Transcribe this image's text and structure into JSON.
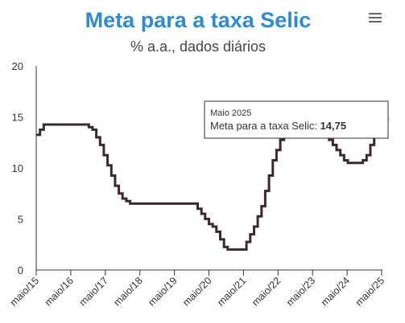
{
  "header": {
    "title": "Meta para a taxa Selic",
    "subtitle": "% a.a., dados diários",
    "menu_icon": "hamburger-menu-icon"
  },
  "tooltip": {
    "date": "Maio 2025",
    "label": "Meta para a taxa Selic: ",
    "value": "14,75"
  },
  "chart_data": {
    "type": "line",
    "title": "Meta para a taxa Selic",
    "subtitle": "% a.a., dados diários",
    "xlabel": "",
    "ylabel": "",
    "xlim": [
      2015.0,
      2025.4
    ],
    "ylim": [
      0,
      20
    ],
    "yticks": [
      0,
      5,
      10,
      15,
      20
    ],
    "xticks": [
      {
        "x": 2015,
        "label": "maio/15"
      },
      {
        "x": 2016,
        "label": "maio/16"
      },
      {
        "x": 2017,
        "label": "maio/17"
      },
      {
        "x": 2018,
        "label": "maio/18"
      },
      {
        "x": 2019,
        "label": "maio/19"
      },
      {
        "x": 2020,
        "label": "maio/20"
      },
      {
        "x": 2021,
        "label": "maio/21"
      },
      {
        "x": 2022,
        "label": "maio/22"
      },
      {
        "x": 2023,
        "label": "maio/23"
      },
      {
        "x": 2024,
        "label": "maio/24"
      },
      {
        "x": 2025,
        "label": "maio/25"
      }
    ],
    "grid": false,
    "line_color": "#3a2a2e",
    "step": true,
    "series": [
      {
        "points": [
          [
            2015.0,
            13.25
          ],
          [
            2015.1,
            13.75
          ],
          [
            2015.2,
            14.25
          ],
          [
            2016.4,
            14.0
          ],
          [
            2016.5,
            13.75
          ],
          [
            2016.6,
            13.0
          ],
          [
            2016.7,
            12.25
          ],
          [
            2016.8,
            11.25
          ],
          [
            2016.9,
            10.25
          ],
          [
            2017.0,
            9.25
          ],
          [
            2017.1,
            8.25
          ],
          [
            2017.2,
            7.5
          ],
          [
            2017.3,
            7.0
          ],
          [
            2017.4,
            6.75
          ],
          [
            2017.5,
            6.5
          ],
          [
            2019.3,
            6.0
          ],
          [
            2019.4,
            5.5
          ],
          [
            2019.5,
            5.0
          ],
          [
            2019.6,
            4.5
          ],
          [
            2019.7,
            4.25
          ],
          [
            2019.8,
            3.75
          ],
          [
            2019.9,
            3.0
          ],
          [
            2020.0,
            2.25
          ],
          [
            2020.1,
            2.0
          ],
          [
            2020.6,
            2.75
          ],
          [
            2020.7,
            3.5
          ],
          [
            2020.8,
            4.25
          ],
          [
            2020.9,
            5.25
          ],
          [
            2021.0,
            6.25
          ],
          [
            2021.1,
            7.75
          ],
          [
            2021.2,
            9.25
          ],
          [
            2021.3,
            10.75
          ],
          [
            2021.4,
            11.75
          ],
          [
            2021.5,
            12.75
          ],
          [
            2021.6,
            13.25
          ],
          [
            2021.7,
            13.75
          ],
          [
            2022.6,
            13.75
          ],
          [
            2022.7,
            13.25
          ],
          [
            2022.8,
            12.75
          ],
          [
            2022.9,
            12.25
          ],
          [
            2023.0,
            11.75
          ],
          [
            2023.1,
            11.25
          ],
          [
            2023.2,
            10.75
          ],
          [
            2023.3,
            10.5
          ],
          [
            2023.7,
            10.75
          ],
          [
            2023.8,
            11.25
          ],
          [
            2023.9,
            12.25
          ],
          [
            2024.0,
            13.25
          ],
          [
            2024.1,
            14.25
          ],
          [
            2024.2,
            14.75
          ],
          [
            2024.2,
            14.75
          ]
        ]
      }
    ]
  }
}
